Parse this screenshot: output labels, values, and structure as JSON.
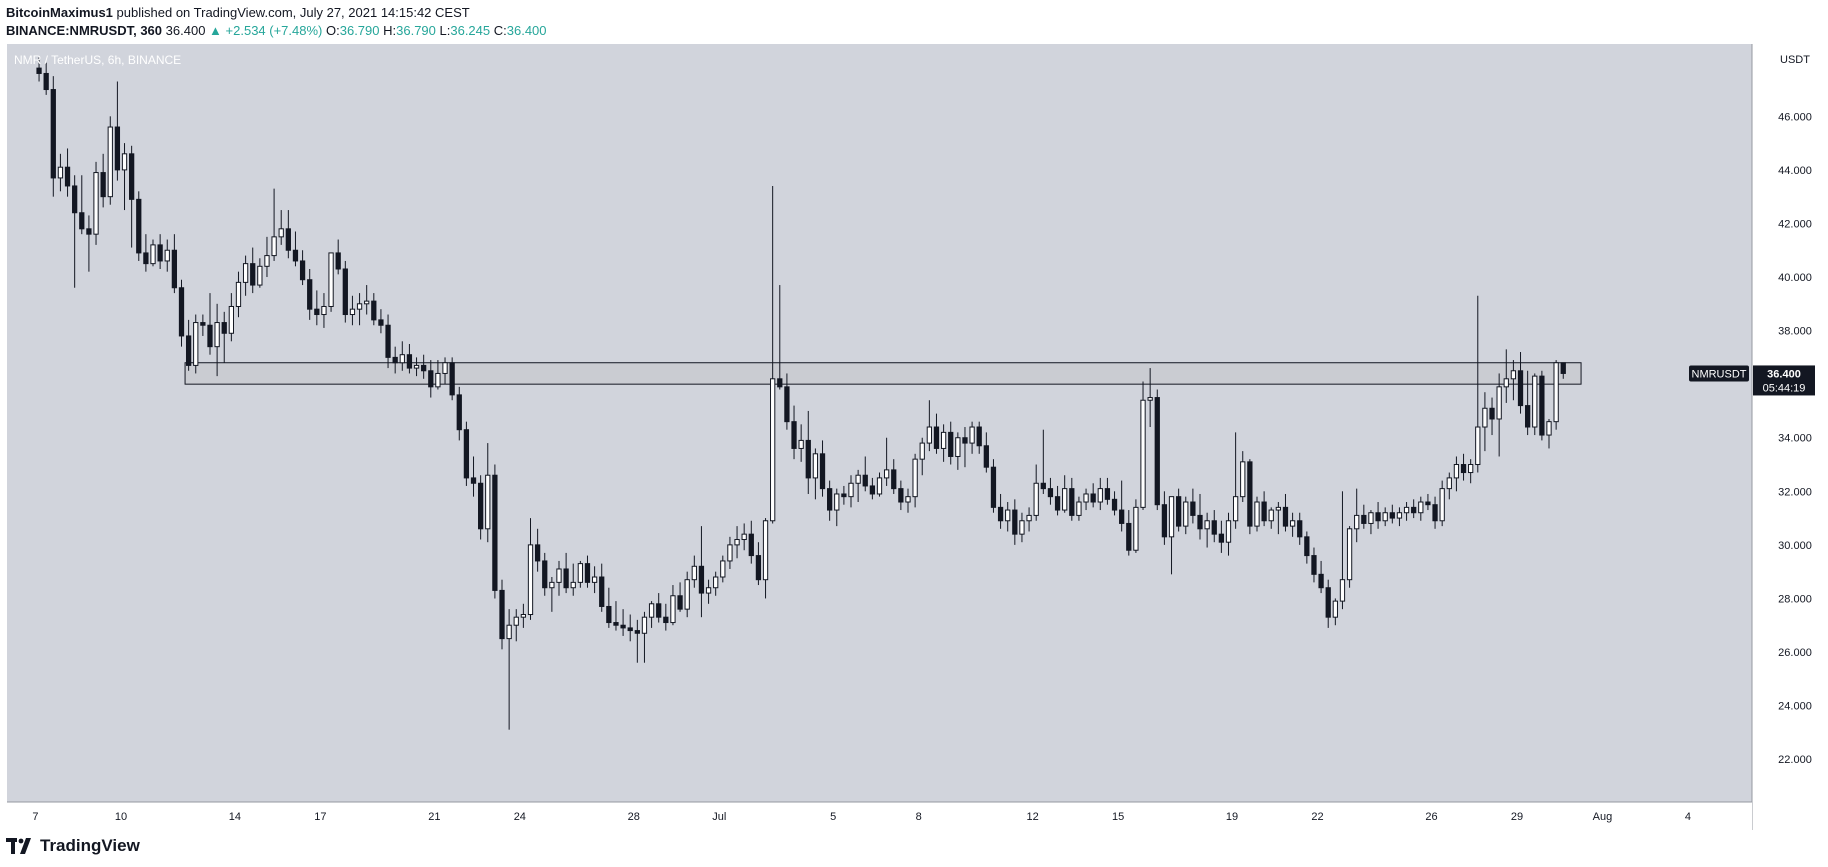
{
  "header": {
    "author": "BitcoinMaximus1",
    "published_text": "published on TradingView.com, July 27, 2021 14:15:42 CEST",
    "symbol": "BINANCE:NMRUSDT, 360",
    "last": "36.400",
    "change": "▲ +2.534 (+7.48%)",
    "o_label": "O:",
    "o_value": "36.790",
    "h_label": "H:",
    "h_value": "36.790",
    "l_label": "L:",
    "l_value": "36.245",
    "c_label": "C:",
    "c_value": "36.400"
  },
  "footer": {
    "brand": "TradingView"
  },
  "colors": {
    "plot_bg": "#d1d4dc",
    "candle_body": "#131722",
    "up_fill": "#ffffff",
    "up_text": "#26a69a",
    "zone_fill": "#c4c6cc",
    "label_bg": "#131722",
    "label_text": "#ffffff"
  },
  "chart_data": {
    "type": "candlestick",
    "title": "NMR / TetherUS, 6h, BINANCE",
    "currency_label": "USDT",
    "ylim": [
      20.4,
      48.7
    ],
    "y_ticks": [
      22,
      24,
      26,
      28,
      30,
      32,
      34,
      36,
      38,
      40,
      42,
      44,
      46
    ],
    "y_tick_labels": [
      "22.000",
      "24.000",
      "26.000",
      "28.000",
      "30.000",
      "32.000",
      "34.000",
      "36.000",
      "38.000",
      "40.000",
      "42.000",
      "44.000",
      "46.000"
    ],
    "x_ticks": [
      "7",
      "10",
      "14",
      "17",
      "21",
      "24",
      "28",
      "Jul",
      "5",
      "8",
      "12",
      "15",
      "19",
      "22",
      "26",
      "29",
      "Aug",
      "4"
    ],
    "x_tick_dates": [
      "2021-06-07",
      "2021-06-10",
      "2021-06-14",
      "2021-06-17",
      "2021-06-21",
      "2021-06-24",
      "2021-06-28",
      "2021-07-01",
      "2021-07-05",
      "2021-07-08",
      "2021-07-12",
      "2021-07-15",
      "2021-07-19",
      "2021-07-22",
      "2021-07-26",
      "2021-07-29",
      "2021-08-01",
      "2021-08-04"
    ],
    "x_range": [
      "2021-06-06T00:00",
      "2021-08-06T06:00"
    ],
    "period_hours": 6,
    "first_candle": "2021-06-07T00:00",
    "candles": [
      [
        47.8,
        48.2,
        47.3,
        47.6
      ],
      [
        47.6,
        48.0,
        46.8,
        47.0
      ],
      [
        47.0,
        47.5,
        43.0,
        43.7
      ],
      [
        43.7,
        44.6,
        43.2,
        44.1
      ],
      [
        44.1,
        44.8,
        43.0,
        43.4
      ],
      [
        43.4,
        43.8,
        39.6,
        42.4
      ],
      [
        42.4,
        43.8,
        41.6,
        41.8
      ],
      [
        41.8,
        42.3,
        40.2,
        41.6
      ],
      [
        41.6,
        44.3,
        41.2,
        43.9
      ],
      [
        43.9,
        44.6,
        42.6,
        43.0
      ],
      [
        43.0,
        46.0,
        42.7,
        45.6
      ],
      [
        45.6,
        47.3,
        43.6,
        44.0
      ],
      [
        44.0,
        45.0,
        42.5,
        44.6
      ],
      [
        44.6,
        44.9,
        41.1,
        42.9
      ],
      [
        42.9,
        43.2,
        40.6,
        40.9
      ],
      [
        40.9,
        41.6,
        40.2,
        40.5
      ],
      [
        40.5,
        41.4,
        40.4,
        41.2
      ],
      [
        41.2,
        41.6,
        40.3,
        40.6
      ],
      [
        40.6,
        41.4,
        40.2,
        41.0
      ],
      [
        41.0,
        41.6,
        39.4,
        39.6
      ],
      [
        39.6,
        39.9,
        37.4,
        37.8
      ],
      [
        37.8,
        38.4,
        36.5,
        36.7
      ],
      [
        36.7,
        38.6,
        36.4,
        38.3
      ],
      [
        38.3,
        38.6,
        37.8,
        38.2
      ],
      [
        38.2,
        39.4,
        37.1,
        37.4
      ],
      [
        37.4,
        39.0,
        36.3,
        38.3
      ],
      [
        38.3,
        38.7,
        36.8,
        37.9
      ],
      [
        37.9,
        39.4,
        37.6,
        38.9
      ],
      [
        38.9,
        40.2,
        38.5,
        39.8
      ],
      [
        39.8,
        40.8,
        39.3,
        40.5
      ],
      [
        40.5,
        41.1,
        39.4,
        39.7
      ],
      [
        39.7,
        40.7,
        39.6,
        40.4
      ],
      [
        40.4,
        41.5,
        40.0,
        40.8
      ],
      [
        40.8,
        43.3,
        40.6,
        41.5
      ],
      [
        41.5,
        42.5,
        41.2,
        41.8
      ],
      [
        41.8,
        42.5,
        40.7,
        41.0
      ],
      [
        41.0,
        41.7,
        40.4,
        40.6
      ],
      [
        40.6,
        41.0,
        39.7,
        39.9
      ],
      [
        39.9,
        40.3,
        38.4,
        38.8
      ],
      [
        38.8,
        39.5,
        38.2,
        38.6
      ],
      [
        38.6,
        39.4,
        38.1,
        38.9
      ],
      [
        38.9,
        40.9,
        38.7,
        40.9
      ],
      [
        40.9,
        41.4,
        40.1,
        40.3
      ],
      [
        40.3,
        40.6,
        38.3,
        38.6
      ],
      [
        38.6,
        39.3,
        38.2,
        38.8
      ],
      [
        38.8,
        39.4,
        38.2,
        39.0
      ],
      [
        39.0,
        39.7,
        38.6,
        39.1
      ],
      [
        39.1,
        39.4,
        38.2,
        38.4
      ],
      [
        38.4,
        38.8,
        37.9,
        38.2
      ],
      [
        38.2,
        38.6,
        36.6,
        37.0
      ],
      [
        37.0,
        37.4,
        36.4,
        36.8
      ],
      [
        36.8,
        37.6,
        36.5,
        37.1
      ],
      [
        37.1,
        37.5,
        36.4,
        36.6
      ],
      [
        36.6,
        37.0,
        36.3,
        36.7
      ],
      [
        36.7,
        37.1,
        36.2,
        36.5
      ],
      [
        36.5,
        36.9,
        35.5,
        35.9
      ],
      [
        35.9,
        36.9,
        35.8,
        36.4
      ],
      [
        36.4,
        37.0,
        36.0,
        36.8
      ],
      [
        36.8,
        37.0,
        35.4,
        35.6
      ],
      [
        35.6,
        35.9,
        33.9,
        34.3
      ],
      [
        34.3,
        34.6,
        32.2,
        32.5
      ],
      [
        32.5,
        33.3,
        31.8,
        32.3
      ],
      [
        32.3,
        32.6,
        30.2,
        30.6
      ],
      [
        30.6,
        33.8,
        30.1,
        32.6
      ],
      [
        32.6,
        33.0,
        28.0,
        28.3
      ],
      [
        28.3,
        28.7,
        26.1,
        26.5
      ],
      [
        26.5,
        27.6,
        23.1,
        27.0
      ],
      [
        27.0,
        27.6,
        26.4,
        27.3
      ],
      [
        27.3,
        27.8,
        26.9,
        27.4
      ],
      [
        27.4,
        31.0,
        27.2,
        30.0
      ],
      [
        30.0,
        30.6,
        29.0,
        29.4
      ],
      [
        29.4,
        29.7,
        28.1,
        28.4
      ],
      [
        28.4,
        28.8,
        27.5,
        28.6
      ],
      [
        28.6,
        29.4,
        28.1,
        29.1
      ],
      [
        29.1,
        29.7,
        28.2,
        28.4
      ],
      [
        28.4,
        29.3,
        28.1,
        28.6
      ],
      [
        28.6,
        29.4,
        28.4,
        29.3
      ],
      [
        29.3,
        29.6,
        28.4,
        28.6
      ],
      [
        28.6,
        29.2,
        28.2,
        28.8
      ],
      [
        28.8,
        29.3,
        27.5,
        27.7
      ],
      [
        27.7,
        28.4,
        26.9,
        27.1
      ],
      [
        27.1,
        27.9,
        26.8,
        27.0
      ],
      [
        27.0,
        27.6,
        26.6,
        26.9
      ],
      [
        26.9,
        27.4,
        26.4,
        26.8
      ],
      [
        26.8,
        27.2,
        25.6,
        26.7
      ],
      [
        26.7,
        27.5,
        25.6,
        27.3
      ],
      [
        27.3,
        27.9,
        26.9,
        27.8
      ],
      [
        27.8,
        28.2,
        27.1,
        27.3
      ],
      [
        27.3,
        27.8,
        26.8,
        27.1
      ],
      [
        27.1,
        28.5,
        27.0,
        28.1
      ],
      [
        28.1,
        28.6,
        27.5,
        27.6
      ],
      [
        27.6,
        29.0,
        27.3,
        28.7
      ],
      [
        28.7,
        29.6,
        28.4,
        29.2
      ],
      [
        29.2,
        30.7,
        27.3,
        28.2
      ],
      [
        28.2,
        28.7,
        27.8,
        28.4
      ],
      [
        28.4,
        29.0,
        28.1,
        28.8
      ],
      [
        28.8,
        29.6,
        28.6,
        29.4
      ],
      [
        29.4,
        30.3,
        29.1,
        30.0
      ],
      [
        30.0,
        30.7,
        29.5,
        30.2
      ],
      [
        30.2,
        30.8,
        29.8,
        30.4
      ],
      [
        30.4,
        30.9,
        29.3,
        29.6
      ],
      [
        29.6,
        30.1,
        28.5,
        28.7
      ],
      [
        28.7,
        31.0,
        28.0,
        30.9
      ],
      [
        30.9,
        43.4,
        30.8,
        36.2
      ],
      [
        36.2,
        39.7,
        35.8,
        35.9
      ],
      [
        35.9,
        36.4,
        34.3,
        34.6
      ],
      [
        34.6,
        35.2,
        33.2,
        33.6
      ],
      [
        33.6,
        34.5,
        33.1,
        33.9
      ],
      [
        33.9,
        35.0,
        31.9,
        32.5
      ],
      [
        32.5,
        33.6,
        31.7,
        33.4
      ],
      [
        33.4,
        33.9,
        31.8,
        32.1
      ],
      [
        32.1,
        32.4,
        30.9,
        31.3
      ],
      [
        31.3,
        32.1,
        30.7,
        31.9
      ],
      [
        31.9,
        32.2,
        31.5,
        31.8
      ],
      [
        31.8,
        32.6,
        31.4,
        32.3
      ],
      [
        32.3,
        32.8,
        31.6,
        32.6
      ],
      [
        32.6,
        33.3,
        32.0,
        32.2
      ],
      [
        32.2,
        32.5,
        31.7,
        31.9
      ],
      [
        31.9,
        32.7,
        31.8,
        32.5
      ],
      [
        32.5,
        34.0,
        32.2,
        32.8
      ],
      [
        32.8,
        33.2,
        31.9,
        32.1
      ],
      [
        32.1,
        32.4,
        31.3,
        31.6
      ],
      [
        31.6,
        32.1,
        31.2,
        31.8
      ],
      [
        31.8,
        33.4,
        31.4,
        33.2
      ],
      [
        33.2,
        34.0,
        32.6,
        33.8
      ],
      [
        33.8,
        35.4,
        33.5,
        34.4
      ],
      [
        34.4,
        34.9,
        33.4,
        33.6
      ],
      [
        33.6,
        34.5,
        33.1,
        34.2
      ],
      [
        34.2,
        34.6,
        33.0,
        33.3
      ],
      [
        33.3,
        34.2,
        32.8,
        34.0
      ],
      [
        34.0,
        34.4,
        32.9,
        33.8
      ],
      [
        33.8,
        34.6,
        33.4,
        34.4
      ],
      [
        34.4,
        34.6,
        33.4,
        33.7
      ],
      [
        33.7,
        34.2,
        32.7,
        32.9
      ],
      [
        32.9,
        33.2,
        31.2,
        31.4
      ],
      [
        31.4,
        31.9,
        30.6,
        30.9
      ],
      [
        30.9,
        31.6,
        30.5,
        31.3
      ],
      [
        31.3,
        31.7,
        30.0,
        30.4
      ],
      [
        30.4,
        31.2,
        30.1,
        30.9
      ],
      [
        30.9,
        31.4,
        30.5,
        31.1
      ],
      [
        31.1,
        33.0,
        30.9,
        32.3
      ],
      [
        32.3,
        34.3,
        31.9,
        32.1
      ],
      [
        32.1,
        32.5,
        31.5,
        31.8
      ],
      [
        31.8,
        32.2,
        31.1,
        31.3
      ],
      [
        31.3,
        32.6,
        31.2,
        32.1
      ],
      [
        32.1,
        32.5,
        30.9,
        31.1
      ],
      [
        31.1,
        31.8,
        30.9,
        31.6
      ],
      [
        31.6,
        32.1,
        31.3,
        31.9
      ],
      [
        31.9,
        32.3,
        31.4,
        31.6
      ],
      [
        31.6,
        32.5,
        31.3,
        32.1
      ],
      [
        32.1,
        32.5,
        31.5,
        31.7
      ],
      [
        31.7,
        32.0,
        31.1,
        31.3
      ],
      [
        31.3,
        32.4,
        30.5,
        30.8
      ],
      [
        30.8,
        31.3,
        29.6,
        29.8
      ],
      [
        29.8,
        31.7,
        29.7,
        31.4
      ],
      [
        31.4,
        36.1,
        31.3,
        35.4
      ],
      [
        35.4,
        36.6,
        34.4,
        35.5
      ],
      [
        35.5,
        35.8,
        31.3,
        31.5
      ],
      [
        31.5,
        32.0,
        30.0,
        30.3
      ],
      [
        30.3,
        31.8,
        28.9,
        31.8
      ],
      [
        31.8,
        32.1,
        30.5,
        30.7
      ],
      [
        30.7,
        31.8,
        30.4,
        31.6
      ],
      [
        31.6,
        32.1,
        30.8,
        31.1
      ],
      [
        31.1,
        31.9,
        30.2,
        30.6
      ],
      [
        30.6,
        31.2,
        29.9,
        30.9
      ],
      [
        30.9,
        31.3,
        30.1,
        30.4
      ],
      [
        30.4,
        30.9,
        29.7,
        30.1
      ],
      [
        30.1,
        31.2,
        29.6,
        30.9
      ],
      [
        30.9,
        34.2,
        30.6,
        31.8
      ],
      [
        31.8,
        33.5,
        31.6,
        33.1
      ],
      [
        33.1,
        33.2,
        30.4,
        30.7
      ],
      [
        30.7,
        31.8,
        30.5,
        31.6
      ],
      [
        31.6,
        32.0,
        30.7,
        30.9
      ],
      [
        30.9,
        31.4,
        30.6,
        31.3
      ],
      [
        31.3,
        31.6,
        30.4,
        31.4
      ],
      [
        31.4,
        31.9,
        30.5,
        30.7
      ],
      [
        30.7,
        31.2,
        30.3,
        30.9
      ],
      [
        30.9,
        31.2,
        30.0,
        30.3
      ],
      [
        30.3,
        30.5,
        29.3,
        29.6
      ],
      [
        29.6,
        29.9,
        28.6,
        28.9
      ],
      [
        28.9,
        29.4,
        28.2,
        28.4
      ],
      [
        28.4,
        28.7,
        26.9,
        27.3
      ],
      [
        27.3,
        28.0,
        27.0,
        27.9
      ],
      [
        27.9,
        32.0,
        27.6,
        28.7
      ],
      [
        28.7,
        30.7,
        28.4,
        30.6
      ],
      [
        30.6,
        32.1,
        30.1,
        31.1
      ],
      [
        31.1,
        31.5,
        30.6,
        30.8
      ],
      [
        30.8,
        31.3,
        30.4,
        31.2
      ],
      [
        31.2,
        31.6,
        30.6,
        30.9
      ],
      [
        30.9,
        31.4,
        30.7,
        31.2
      ],
      [
        31.2,
        31.5,
        30.8,
        31.0
      ],
      [
        31.0,
        31.4,
        30.7,
        31.2
      ],
      [
        31.2,
        31.6,
        30.9,
        31.4
      ],
      [
        31.4,
        31.7,
        31.0,
        31.2
      ],
      [
        31.2,
        31.8,
        30.9,
        31.6
      ],
      [
        31.6,
        31.9,
        31.3,
        31.5
      ],
      [
        31.5,
        31.8,
        30.6,
        30.9
      ],
      [
        30.9,
        32.4,
        30.7,
        32.1
      ],
      [
        32.1,
        32.7,
        31.7,
        32.5
      ],
      [
        32.5,
        33.3,
        32.0,
        33.0
      ],
      [
        33.0,
        33.4,
        32.4,
        32.7
      ],
      [
        32.7,
        33.2,
        32.3,
        33.0
      ],
      [
        33.0,
        39.3,
        32.7,
        34.4
      ],
      [
        34.4,
        35.7,
        33.5,
        35.1
      ],
      [
        35.1,
        35.5,
        34.1,
        34.7
      ],
      [
        34.7,
        36.4,
        33.3,
        35.9
      ],
      [
        35.9,
        37.3,
        35.3,
        36.2
      ],
      [
        36.2,
        36.9,
        35.4,
        36.5
      ],
      [
        36.5,
        37.2,
        34.9,
        35.2
      ],
      [
        35.2,
        36.5,
        34.1,
        34.4
      ],
      [
        34.4,
        36.4,
        34.1,
        36.3
      ],
      [
        36.3,
        36.5,
        33.9,
        34.1
      ],
      [
        34.1,
        34.7,
        33.6,
        34.6
      ],
      [
        34.6,
        36.9,
        34.3,
        36.8
      ],
      [
        36.8,
        36.8,
        36.2,
        36.4
      ]
    ],
    "support_zone": {
      "start": "2021-06-12T06:00",
      "end": "2021-07-31T06:00",
      "low": 36.0,
      "high": 36.8
    },
    "last_price_label": {
      "symbol": "NMRUSDT",
      "price": "36.400",
      "countdown": "05:44:19"
    }
  }
}
